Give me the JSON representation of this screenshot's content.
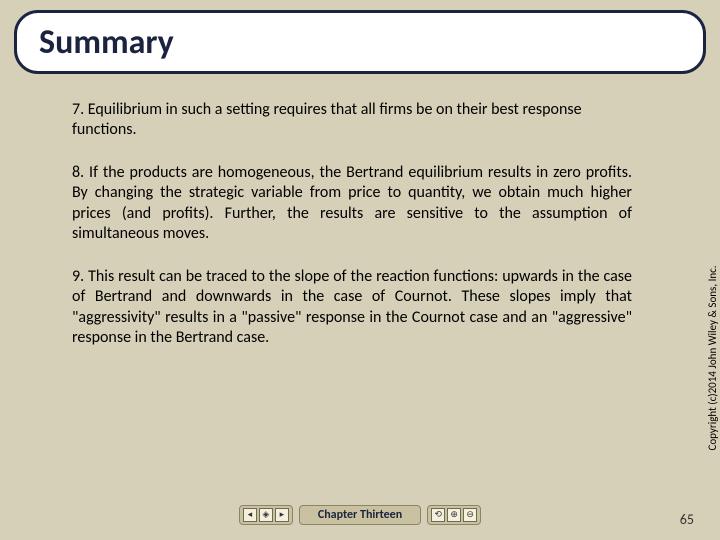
{
  "title": "Summary",
  "points": {
    "p7": "7.  Equilibrium in such a setting requires that all firms be on their best response functions.",
    "p8": "8.  If the products are homogeneous, the Bertrand equilibrium results in zero profits. By changing the strategic variable from price to quantity, we obtain much higher prices (and profits).  Further, the results are sensitive to the assumption of simultaneous moves.",
    "p9": "9. This result can be traced to the slope of the reaction functions: upwards in the case of Bertrand and downwards in the case of Cournot. These slopes imply that \"aggressivity\" results in a \"passive\" response in the Cournot case and an \"aggressive\" response in the Bertrand case."
  },
  "copyright": "Copyright (c)2014 John Wiley & Sons, Inc.",
  "footer": {
    "chapter": "Chapter Thirteen",
    "nav_left": [
      "◂",
      "◈",
      "▸"
    ],
    "nav_right": [
      "⟲",
      "⊕",
      "⊖"
    ]
  },
  "page_number": "65",
  "colors": {
    "background": "#d6d0b8",
    "title_border": "#1a2340",
    "title_bg": "#ffffff",
    "text": "#000000",
    "footer_box_bg": "#c9c1a0",
    "footer_box_border": "#8b8568"
  }
}
